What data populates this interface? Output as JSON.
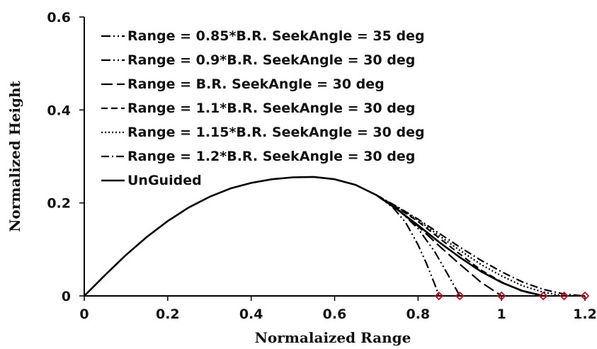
{
  "chart_data": {
    "type": "line",
    "title": "",
    "xlabel": "Normalaized Range",
    "ylabel": "Normalized Height",
    "xlim": [
      0,
      1.2
    ],
    "ylim": [
      0,
      0.6
    ],
    "xticks": [
      "0",
      "0.2",
      "0.4",
      "0.6",
      "0.8",
      "1",
      "1.2"
    ],
    "yticks": [
      "0",
      "0.2",
      "0.4",
      "0.6"
    ],
    "legend_position": "top-left (inside plot area)",
    "grid": false,
    "line_color": "#000000",
    "marker_color": "#d0021b",
    "series": [
      {
        "name": "Range = 0.85*B.R. SeekAngle = 35 deg",
        "dash": "long-dash-dot-dot",
        "x": [
          0.7,
          0.74,
          0.77,
          0.8,
          0.82,
          0.84,
          0.85
        ],
        "y": [
          0.217,
          0.19,
          0.158,
          0.11,
          0.07,
          0.025,
          0.0
        ]
      },
      {
        "name": "Range = 0.9*B.R. SeekAngle = 30 deg",
        "dash": "long-dash-dot-dot",
        "x": [
          0.7,
          0.75,
          0.8,
          0.84,
          0.87,
          0.9
        ],
        "y": [
          0.217,
          0.188,
          0.145,
          0.095,
          0.048,
          0.0
        ]
      },
      {
        "name": "Range = B.R. SeekAngle = 30 deg",
        "dash": "long-dash",
        "x": [
          0.7,
          0.75,
          0.8,
          0.85,
          0.9,
          0.95,
          1.0
        ],
        "y": [
          0.217,
          0.186,
          0.15,
          0.108,
          0.068,
          0.03,
          0.0
        ]
      },
      {
        "name": "Range = 1.1*B.R. SeekAngle = 30 deg",
        "dash": "dash",
        "x": [
          0.7,
          0.75,
          0.8,
          0.85,
          0.9,
          0.95,
          1.0,
          1.05,
          1.1
        ],
        "y": [
          0.217,
          0.19,
          0.16,
          0.125,
          0.09,
          0.056,
          0.03,
          0.01,
          0.0
        ]
      },
      {
        "name": "Range = 1.15*B.R. SeekAngle = 30 deg",
        "dash": "dot",
        "x": [
          0.7,
          0.75,
          0.8,
          0.85,
          0.9,
          0.95,
          1.0,
          1.05,
          1.1,
          1.15
        ],
        "y": [
          0.217,
          0.191,
          0.163,
          0.13,
          0.098,
          0.068,
          0.043,
          0.022,
          0.008,
          0.0
        ]
      },
      {
        "name": "Range = 1.2*B.R. SeekAngle = 30 deg",
        "dash": "dash-dot",
        "x": [
          0.7,
          0.75,
          0.8,
          0.85,
          0.9,
          0.95,
          1.0,
          1.05,
          1.1,
          1.15,
          1.2
        ],
        "y": [
          0.217,
          0.192,
          0.165,
          0.135,
          0.105,
          0.077,
          0.052,
          0.03,
          0.014,
          0.004,
          0.0
        ]
      },
      {
        "name": "UnGuided",
        "dash": "solid",
        "x": [
          0,
          0.05,
          0.1,
          0.15,
          0.2,
          0.25,
          0.3,
          0.35,
          0.4,
          0.45,
          0.5,
          0.55,
          0.6,
          0.65,
          0.7,
          0.75,
          0.8,
          0.85,
          0.9,
          0.95,
          1.0,
          1.05,
          1.1
        ],
        "y": [
          0,
          0.045,
          0.088,
          0.127,
          0.161,
          0.19,
          0.213,
          0.231,
          0.243,
          0.251,
          0.255,
          0.256,
          0.251,
          0.239,
          0.217,
          0.186,
          0.152,
          0.116,
          0.083,
          0.053,
          0.029,
          0.011,
          0.0
        ]
      }
    ],
    "impact_markers": {
      "x": [
        0.85,
        0.9,
        1.0,
        1.1,
        1.15,
        1.2
      ],
      "y": [
        0,
        0,
        0,
        0,
        0,
        0
      ]
    }
  }
}
